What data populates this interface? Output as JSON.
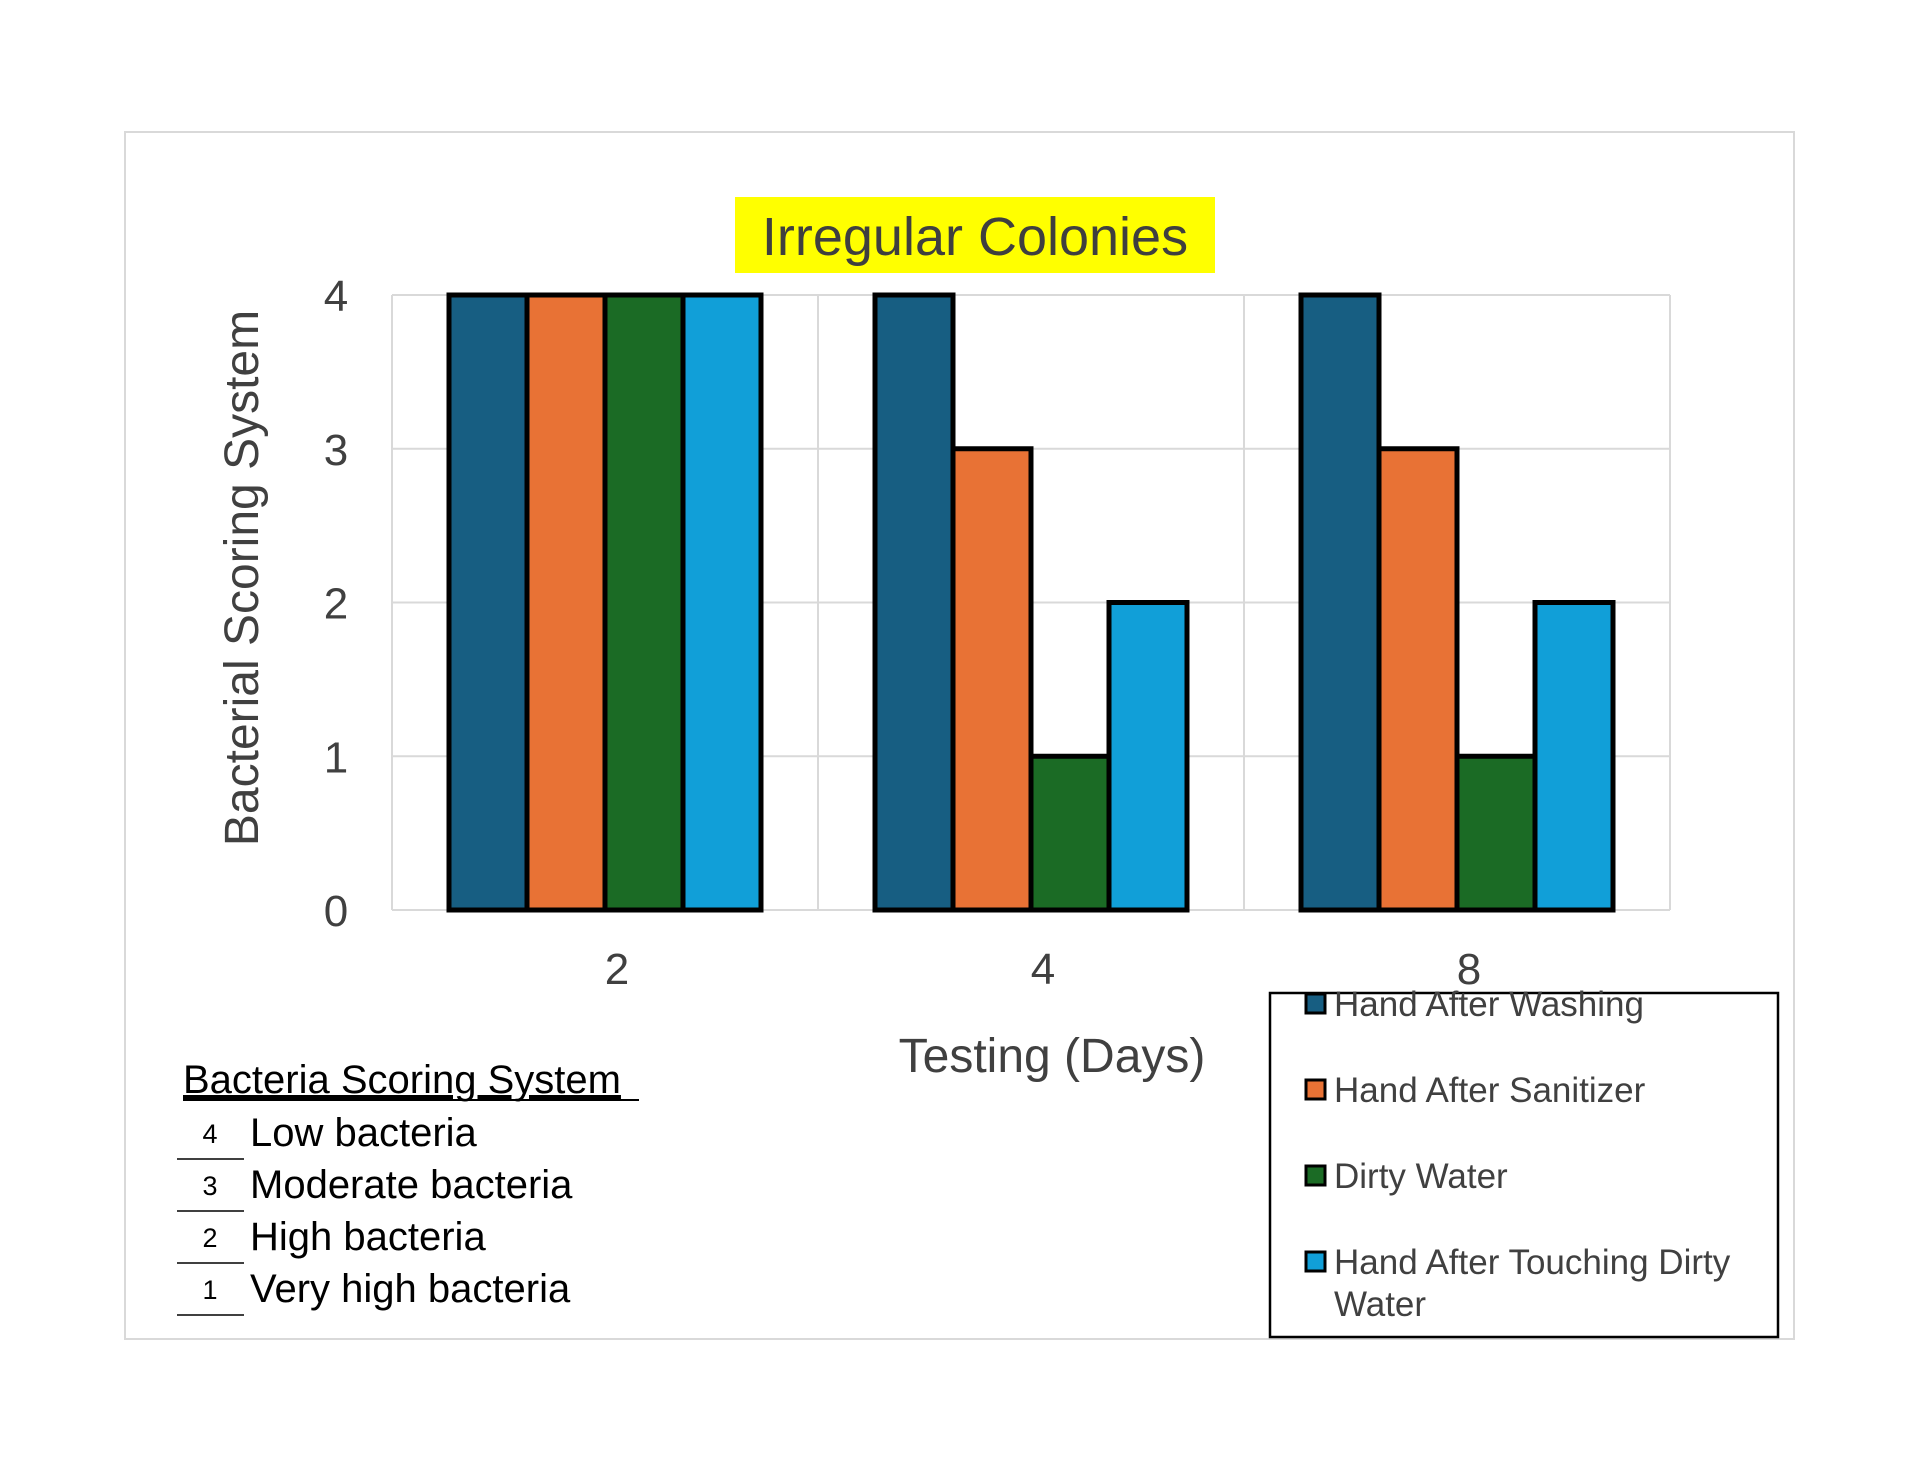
{
  "chart_data": {
    "type": "bar",
    "title": "Irregular Colonies",
    "xlabel": "Testing (Days)",
    "ylabel": "Bacterial Scoring System",
    "categories": [
      "2",
      "4",
      "8"
    ],
    "ylim": [
      0,
      4
    ],
    "yticks": [
      "0",
      "1",
      "2",
      "3",
      "4"
    ],
    "grid": true,
    "legend_position": "bottom-right",
    "series": [
      {
        "name": "Hand After Washing",
        "color": "#175e82",
        "values": [
          4,
          4,
          4
        ]
      },
      {
        "name": "Hand After Sanitizer",
        "color": "#e87235",
        "values": [
          4,
          3,
          3
        ]
      },
      {
        "name": "Dirty Water",
        "color": "#1b6b25",
        "values": [
          4,
          1,
          1
        ]
      },
      {
        "name": "Hand After Touching Dirty Water",
        "color": "#119fd8",
        "values": [
          4,
          2,
          2
        ]
      }
    ],
    "title_highlight_color": "#ffff00"
  },
  "scoring_system": {
    "heading": "Bacteria Scoring System",
    "rows": [
      {
        "score": "4",
        "label": "Low bacteria"
      },
      {
        "score": "3",
        "label": "Moderate bacteria"
      },
      {
        "score": "2",
        "label": "High bacteria"
      },
      {
        "score": "1",
        "label": "Very high bacteria"
      }
    ]
  }
}
